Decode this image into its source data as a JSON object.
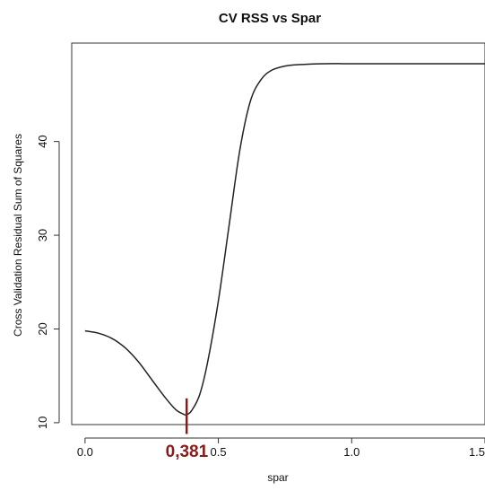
{
  "chart_data": {
    "type": "line",
    "title": "CV RSS vs Spar",
    "xlabel": "spar",
    "ylabel": "Cross Validation Residual Sum of Squares",
    "xlim": [
      -0.05,
      1.5
    ],
    "ylim": [
      9.8,
      50.5
    ],
    "x_ticks": [
      0.0,
      0.5,
      1.0,
      1.5
    ],
    "x_tick_labels": [
      "0.0",
      "0.5",
      "1.0",
      "1.5"
    ],
    "y_ticks": [
      10,
      20,
      30,
      40
    ],
    "y_tick_labels": [
      "10",
      "20",
      "30",
      "40"
    ],
    "grid": false,
    "legend": "none",
    "series": [
      {
        "color": "#222222",
        "points": [
          [
            0.0,
            19.8
          ],
          [
            0.05,
            19.55
          ],
          [
            0.1,
            19.0
          ],
          [
            0.15,
            18.0
          ],
          [
            0.2,
            16.5
          ],
          [
            0.25,
            14.6
          ],
          [
            0.3,
            12.7
          ],
          [
            0.34,
            11.4
          ],
          [
            0.37,
            10.9
          ],
          [
            0.381,
            10.85
          ],
          [
            0.4,
            11.3
          ],
          [
            0.43,
            13.0
          ],
          [
            0.46,
            16.5
          ],
          [
            0.5,
            23.0
          ],
          [
            0.54,
            31.0
          ],
          [
            0.58,
            39.0
          ],
          [
            0.62,
            44.3
          ],
          [
            0.66,
            46.6
          ],
          [
            0.7,
            47.6
          ],
          [
            0.75,
            48.05
          ],
          [
            0.8,
            48.2
          ],
          [
            0.9,
            48.3
          ],
          [
            1.0,
            48.3
          ],
          [
            1.2,
            48.3
          ],
          [
            1.5,
            48.3
          ]
        ]
      }
    ],
    "annotation": {
      "x": 0.381,
      "label": "0,381",
      "color": "#8b1a1a",
      "y_from": 8.8,
      "y_to": 12.6
    }
  }
}
